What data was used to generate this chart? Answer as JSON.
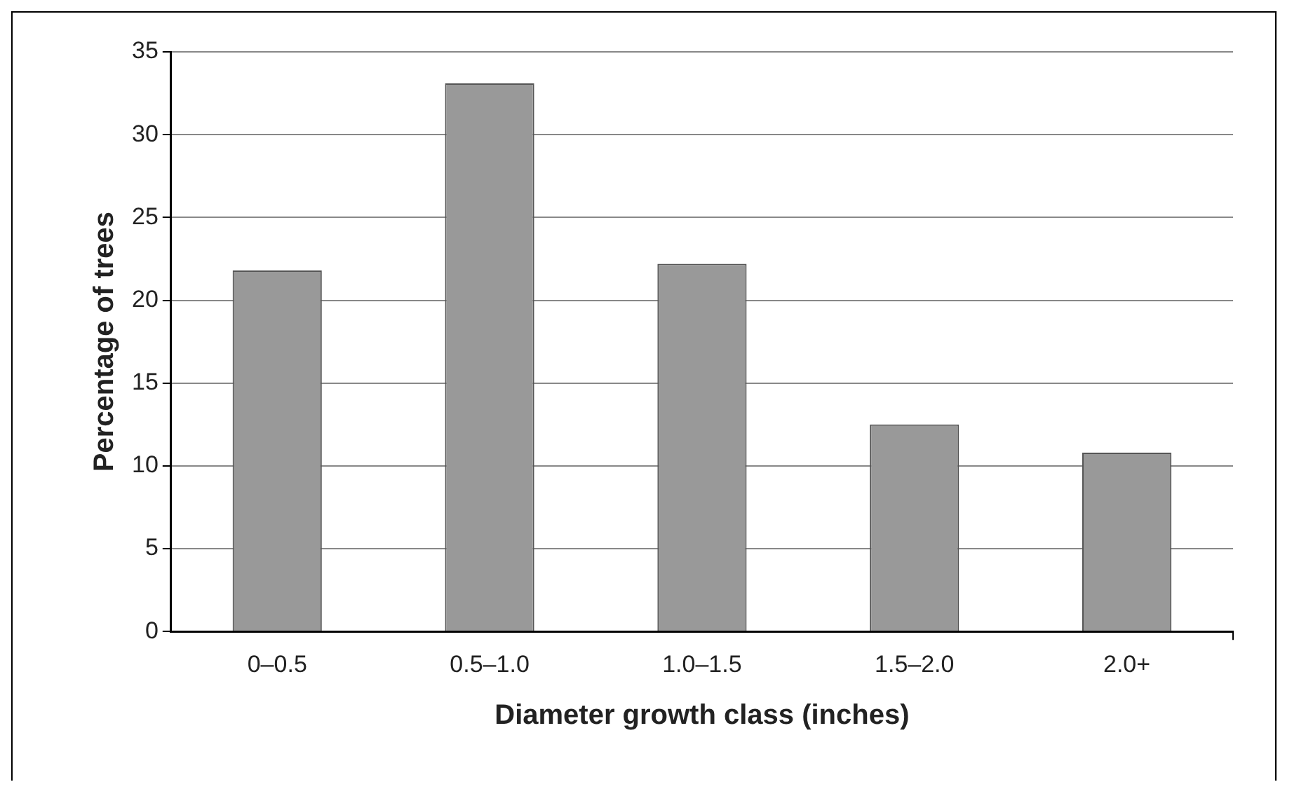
{
  "chart_data": {
    "type": "bar",
    "xlabel": "Diameter growth class (inches)",
    "ylabel": "Percentage of trees",
    "categories": [
      "0–0.5",
      "0.5–1.0",
      "1.0–1.5",
      "1.5–2.0",
      "2.0+"
    ],
    "values": [
      21.8,
      33.1,
      22.2,
      12.5,
      10.8
    ],
    "color": "#999999",
    "ylim": [
      0,
      35
    ],
    "yticks": [
      0,
      5,
      10,
      15,
      20,
      25,
      30,
      35
    ],
    "grid": "y"
  }
}
